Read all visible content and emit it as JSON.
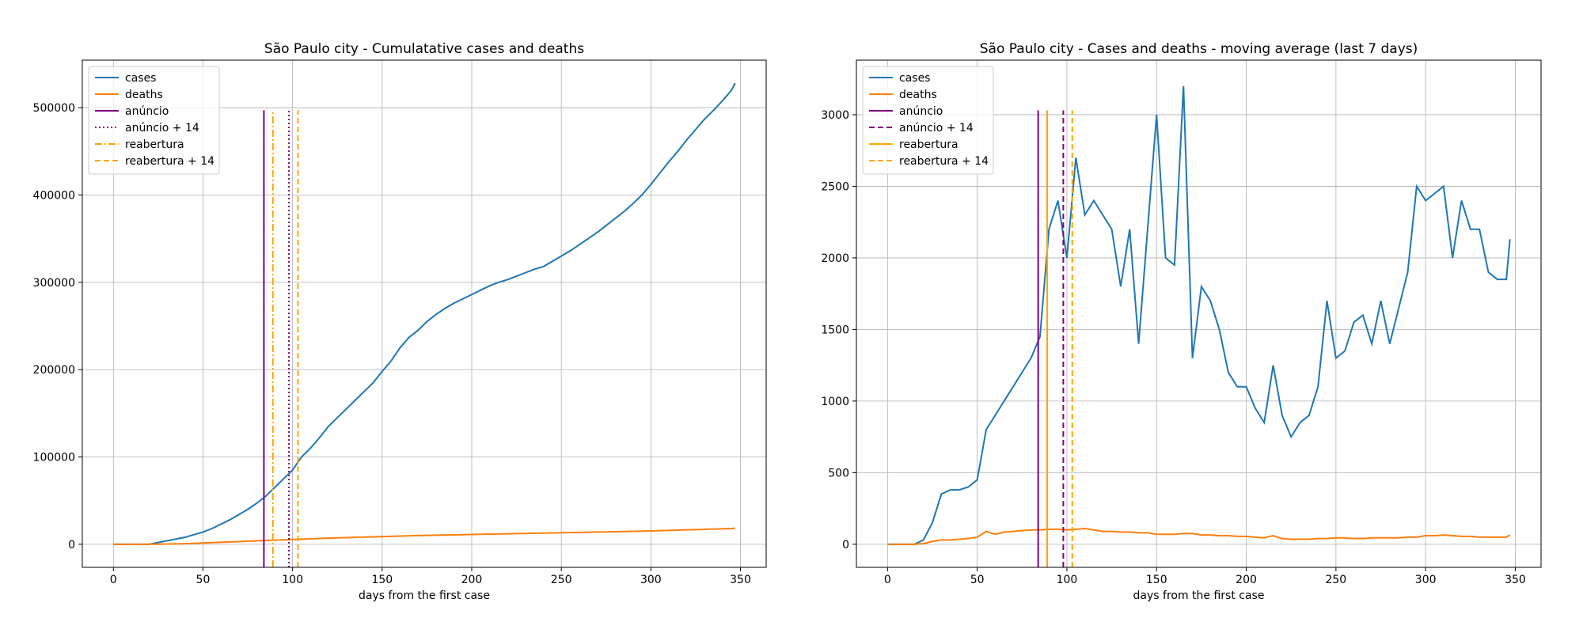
{
  "chart_data": [
    {
      "type": "line",
      "title": "São Paulo city - Cumulatative cases and deaths",
      "xlabel": "days from the first case",
      "x": [
        0,
        5,
        10,
        15,
        20,
        25,
        30,
        35,
        40,
        45,
        50,
        55,
        60,
        65,
        70,
        75,
        80,
        85,
        90,
        95,
        100,
        105,
        110,
        115,
        120,
        125,
        130,
        135,
        140,
        145,
        150,
        155,
        160,
        165,
        170,
        175,
        180,
        185,
        190,
        195,
        200,
        205,
        210,
        215,
        220,
        225,
        230,
        235,
        240,
        245,
        250,
        255,
        260,
        265,
        270,
        275,
        280,
        285,
        290,
        295,
        300,
        305,
        310,
        315,
        320,
        325,
        330,
        335,
        340,
        345,
        347
      ],
      "series": [
        {
          "name": "cases",
          "color": "#1f77b4",
          "values": [
            0,
            0,
            0,
            0,
            0,
            2000,
            4000,
            6000,
            8000,
            11000,
            14000,
            18000,
            23000,
            28000,
            34000,
            40000,
            47000,
            55000,
            65000,
            75000,
            85000,
            100000,
            110000,
            122000,
            135000,
            145000,
            155000,
            165000,
            175000,
            185000,
            198000,
            210000,
            225000,
            237000,
            245000,
            255000,
            263000,
            270000,
            276000,
            281000,
            286000,
            291000,
            296000,
            300000,
            303000,
            307000,
            311000,
            315000,
            318000,
            324000,
            330000,
            336000,
            343000,
            350000,
            357000,
            365000,
            373000,
            381000,
            390000,
            400000,
            412000,
            425000,
            438000,
            450000,
            463000,
            475000,
            487000,
            497000,
            508000,
            520000,
            528000
          ]
        },
        {
          "name": "deaths",
          "color": "#ff7f0e",
          "values": [
            0,
            0,
            0,
            0,
            50,
            150,
            300,
            450,
            700,
            1000,
            1500,
            1900,
            2300,
            2700,
            3100,
            3500,
            3900,
            4300,
            4700,
            5100,
            5500,
            5900,
            6300,
            6700,
            7000,
            7300,
            7600,
            7900,
            8200,
            8500,
            8800,
            9100,
            9400,
            9700,
            10000,
            10200,
            10400,
            10600,
            10800,
            11000,
            11200,
            11400,
            11600,
            11800,
            12000,
            12200,
            12400,
            12600,
            12800,
            13000,
            13200,
            13400,
            13600,
            13800,
            14000,
            14200,
            14400,
            14600,
            14800,
            15000,
            15300,
            15600,
            15900,
            16200,
            16500,
            16800,
            17100,
            17400,
            17700,
            18000,
            18500
          ]
        }
      ],
      "vlines": [
        {
          "name": "anúncio",
          "color": "purple",
          "style": "solid",
          "x": 84,
          "ymax": 497000
        },
        {
          "name": "anúncio + 14",
          "color": "purple",
          "style": "dotted",
          "x": 98,
          "ymax": 497000
        },
        {
          "name": "reabertura",
          "color": "orange",
          "style": "dashdot",
          "x": 89,
          "ymax": 497000
        },
        {
          "name": "reabertura + 14",
          "color": "orange",
          "style": "dashed",
          "x": 103,
          "ymax": 497000
        }
      ],
      "xlim": [
        -17.35,
        364.35
      ],
      "ylim": [
        -26400,
        554400
      ],
      "xticks": [
        0,
        50,
        100,
        150,
        200,
        250,
        300,
        350
      ],
      "yticks": [
        0,
        100000,
        200000,
        300000,
        400000,
        500000
      ],
      "grid": true,
      "legend": "upper-left"
    },
    {
      "type": "line",
      "title": "São Paulo city - Cases and deaths - moving average (last 7 days)",
      "xlabel": "days from the first case",
      "x": [
        0,
        5,
        10,
        15,
        20,
        25,
        30,
        35,
        40,
        45,
        50,
        55,
        60,
        65,
        70,
        75,
        80,
        85,
        90,
        95,
        100,
        105,
        110,
        115,
        120,
        125,
        130,
        135,
        140,
        145,
        150,
        155,
        160,
        165,
        170,
        175,
        180,
        185,
        190,
        195,
        200,
        205,
        210,
        215,
        220,
        225,
        230,
        235,
        240,
        245,
        250,
        255,
        260,
        265,
        270,
        275,
        280,
        285,
        290,
        295,
        300,
        305,
        310,
        315,
        320,
        325,
        330,
        335,
        340,
        345,
        347
      ],
      "series": [
        {
          "name": "cases",
          "color": "#1f77b4",
          "values": [
            0,
            0,
            0,
            0,
            30,
            150,
            350,
            380,
            380,
            400,
            450,
            800,
            900,
            1000,
            1100,
            1200,
            1300,
            1450,
            2200,
            2400,
            2000,
            2700,
            2300,
            2400,
            2300,
            2200,
            1800,
            2200,
            1400,
            2200,
            3000,
            2000,
            1950,
            3200,
            1300,
            1800,
            1700,
            1500,
            1200,
            1100,
            1100,
            950,
            850,
            1250,
            900,
            750,
            850,
            900,
            1100,
            1700,
            1300,
            1350,
            1550,
            1600,
            1400,
            1700,
            1400,
            1650,
            1900,
            2500,
            2400,
            2450,
            2500,
            2000,
            2400,
            2200,
            2200,
            1900,
            1850,
            1850,
            2130
          ]
        },
        {
          "name": "deaths",
          "color": "#ff7f0e",
          "values": [
            0,
            0,
            0,
            0,
            5,
            20,
            30,
            30,
            35,
            40,
            50,
            90,
            70,
            85,
            90,
            95,
            100,
            100,
            105,
            105,
            100,
            105,
            110,
            100,
            90,
            90,
            85,
            85,
            80,
            80,
            70,
            70,
            70,
            75,
            75,
            65,
            65,
            60,
            60,
            55,
            55,
            50,
            45,
            60,
            40,
            35,
            35,
            35,
            40,
            40,
            45,
            45,
            40,
            40,
            45,
            45,
            45,
            45,
            50,
            50,
            60,
            60,
            65,
            60,
            55,
            55,
            50,
            50,
            50,
            50,
            65
          ]
        }
      ],
      "vlines": [
        {
          "name": "anúncio",
          "color": "purple",
          "style": "solid",
          "x": 84,
          "ymax": 3030
        },
        {
          "name": "anúncio + 14",
          "color": "purple",
          "style": "dashed",
          "x": 98,
          "ymax": 3030
        },
        {
          "name": "reabertura",
          "color": "orange",
          "style": "solid",
          "x": 89,
          "ymax": 3030
        },
        {
          "name": "reabertura + 14",
          "color": "orange",
          "style": "dashed",
          "x": 103,
          "ymax": 3030
        }
      ],
      "xlim": [
        -17.35,
        364.35
      ],
      "ylim": [
        -161,
        3381
      ],
      "xticks": [
        0,
        50,
        100,
        150,
        200,
        250,
        300,
        350
      ],
      "yticks": [
        0,
        500,
        1000,
        1500,
        2000,
        2500,
        3000
      ],
      "grid": true,
      "legend": "upper-left"
    }
  ]
}
